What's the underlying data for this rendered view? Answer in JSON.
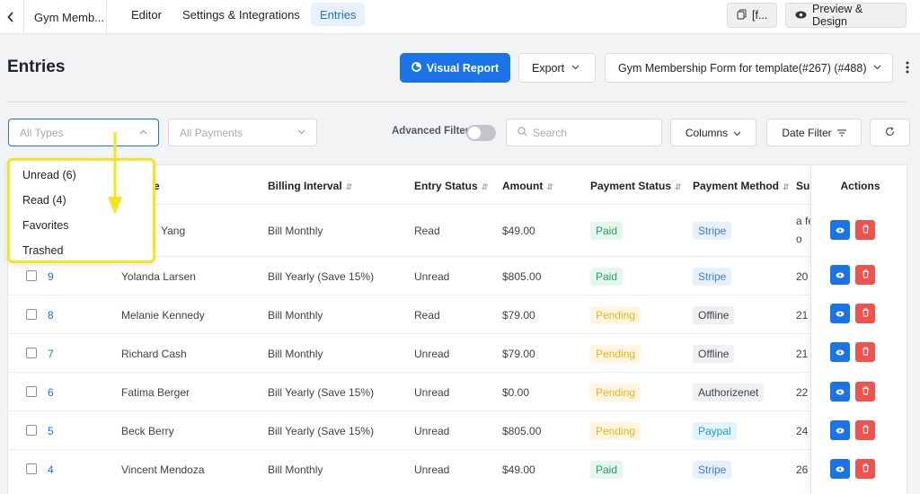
{
  "topbar": {
    "form_title": "Gym Memb...",
    "tabs": [
      {
        "label": "Editor"
      },
      {
        "label": "Settings & Integrations"
      },
      {
        "label": "Entries"
      }
    ],
    "shortcode_label": "[f...",
    "preview_label": "Preview & Design"
  },
  "header": {
    "title": "Entries",
    "visual_report_label": "Visual Report",
    "export_label": "Export",
    "form_selector": "Gym Membership Form for template(#267) (#488)"
  },
  "filters": {
    "types_placeholder": "All Types",
    "payments_placeholder": "All Payments",
    "advanced_filter_label": "Advanced Filter",
    "search_placeholder": "Search",
    "columns_label": "Columns",
    "date_filter_label": "Date Filter"
  },
  "type_dropdown": {
    "options": [
      "Unread (6)",
      "Read (4)",
      "Favorites",
      "Trashed"
    ]
  },
  "table": {
    "columns": [
      "Billing Interval",
      "Entry Status",
      "Amount",
      "Payment Status",
      "Payment Method",
      "Sul"
    ],
    "partial_name_header": "e",
    "actions_label": "Actions",
    "rows": [
      {
        "id": "",
        "name": "Yang",
        "billing": "Bill Monthly",
        "status": "Read",
        "amount": "$49.00",
        "payment_status": "Paid",
        "method": "Stripe",
        "sub": "a fe",
        "sub2": "o"
      },
      {
        "id": "9",
        "name": "Yolanda Larsen",
        "billing": "Bill Yearly (Save 15%)",
        "status": "Unread",
        "amount": "$805.00",
        "payment_status": "Paid",
        "method": "Stripe",
        "sub": "20"
      },
      {
        "id": "8",
        "name": "Melanie Kennedy",
        "billing": "Bill Monthly",
        "status": "Read",
        "amount": "$79.00",
        "payment_status": "Pending",
        "method": "Offline",
        "sub": "21"
      },
      {
        "id": "7",
        "name": "Richard Cash",
        "billing": "Bill Monthly",
        "status": "Unread",
        "amount": "$79.00",
        "payment_status": "Pending",
        "method": "Offline",
        "sub": "21"
      },
      {
        "id": "6",
        "name": "Fatima Berger",
        "billing": "Bill Yearly (Save 15%)",
        "status": "Unread",
        "amount": "$0.00",
        "payment_status": "Pending",
        "method": "Authorizenet",
        "sub": "22"
      },
      {
        "id": "5",
        "name": "Beck Berry",
        "billing": "Bill Yearly (Save 15%)",
        "status": "Unread",
        "amount": "$805.00",
        "payment_status": "Pending",
        "method": "Paypal",
        "sub": "24"
      },
      {
        "id": "4",
        "name": "Vincent Mendoza",
        "billing": "Bill Monthly",
        "status": "Unread",
        "amount": "$49.00",
        "payment_status": "Paid",
        "method": "Stripe",
        "sub": "26"
      }
    ]
  },
  "colors": {
    "accent": "#1a73e8",
    "highlight": "#f4e61a",
    "delete": "#ef5350"
  },
  "icons": [
    "back-chevron-icon",
    "copy-icon",
    "eye-icon",
    "report-icon",
    "chevron-down-icon",
    "search-icon",
    "filter-lines-icon",
    "refresh-icon",
    "kebab-icon",
    "sort-icon",
    "trash-icon"
  ]
}
